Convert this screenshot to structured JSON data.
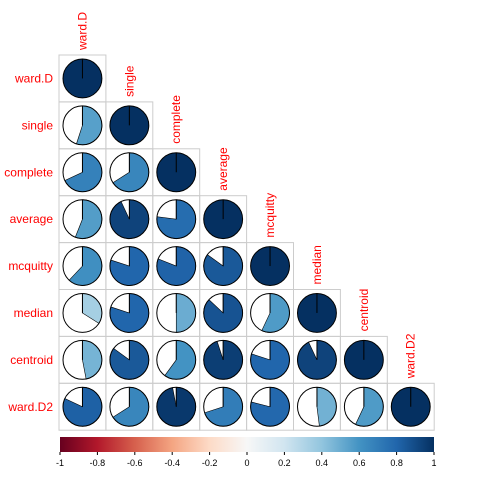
{
  "chart_data": {
    "type": "heatmap",
    "style": "corrplot-pie-lower",
    "variables": [
      "ward.D",
      "single",
      "complete",
      "average",
      "mcquitty",
      "median",
      "centroid",
      "ward.D2"
    ],
    "matrix": [
      [
        1.0,
        null,
        null,
        null,
        null,
        null,
        null,
        null
      ],
      [
        0.55,
        1.0,
        null,
        null,
        null,
        null,
        null,
        null
      ],
      [
        0.68,
        0.66,
        1.0,
        null,
        null,
        null,
        null,
        null
      ],
      [
        0.56,
        0.93,
        0.77,
        1.0,
        null,
        null,
        null,
        null
      ],
      [
        0.62,
        0.8,
        0.81,
        0.85,
        1.0,
        null,
        null,
        null
      ],
      [
        0.34,
        0.8,
        0.5,
        0.87,
        0.57,
        1.0,
        null,
        null
      ],
      [
        0.47,
        0.85,
        0.6,
        0.95,
        0.8,
        0.93,
        1.0,
        null
      ],
      [
        0.82,
        0.66,
        0.97,
        0.7,
        0.79,
        0.48,
        0.57,
        1.0
      ]
    ],
    "colorbar": {
      "range": [
        -1,
        1
      ],
      "ticks": [
        "-1",
        "-0.8",
        "-0.6",
        "-0.4",
        "-0.2",
        "0",
        "0.2",
        "0.4",
        "0.6",
        "0.8",
        "1"
      ],
      "low_color": "#67001F",
      "mid_color": "#F7F7F7",
      "high_color": "#053061"
    },
    "label_color": "#FF0000",
    "grid": true
  }
}
